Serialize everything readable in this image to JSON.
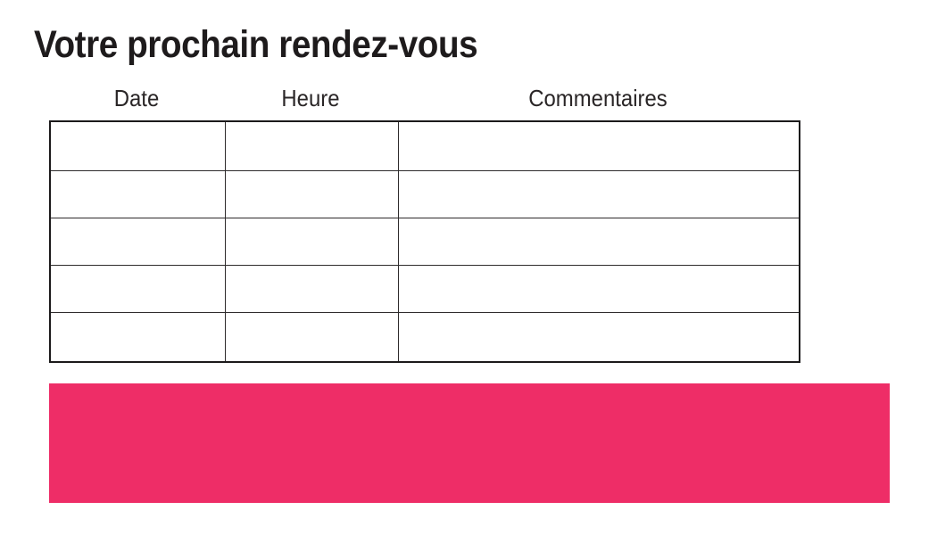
{
  "page": {
    "title": "Votre prochain rendez-vous"
  },
  "appointments_table": {
    "headers": [
      "Date",
      "Heure",
      "Commentaires"
    ],
    "rows": [
      [
        "",
        "",
        ""
      ],
      [
        "",
        "",
        ""
      ],
      [
        "",
        "",
        ""
      ],
      [
        "",
        "",
        ""
      ],
      [
        "",
        "",
        ""
      ]
    ]
  },
  "banner": {
    "color": "#ee2d67"
  },
  "colors": {
    "title_text": "#1e1b1c",
    "table_border": "#2e2b2c",
    "background": "#ffffff"
  }
}
